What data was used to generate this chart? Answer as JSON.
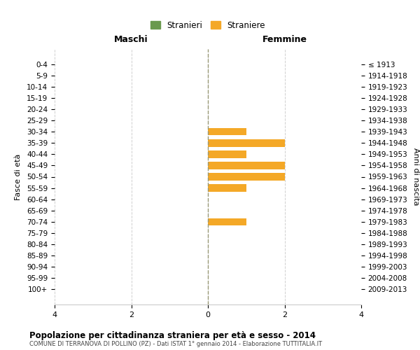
{
  "age_groups": [
    "0-4",
    "5-9",
    "10-14",
    "15-19",
    "20-24",
    "25-29",
    "30-34",
    "35-39",
    "40-44",
    "45-49",
    "50-54",
    "55-59",
    "60-64",
    "65-69",
    "70-74",
    "75-79",
    "80-84",
    "85-89",
    "90-94",
    "95-99",
    "100+"
  ],
  "birth_years": [
    "2009-2013",
    "2004-2008",
    "1999-2003",
    "1994-1998",
    "1989-1993",
    "1984-1988",
    "1979-1983",
    "1974-1978",
    "1969-1973",
    "1964-1968",
    "1959-1963",
    "1954-1958",
    "1949-1953",
    "1944-1948",
    "1939-1943",
    "1934-1938",
    "1929-1933",
    "1924-1928",
    "1919-1923",
    "1914-1918",
    "≤ 1913"
  ],
  "males": [
    0,
    0,
    0,
    0,
    0,
    0,
    0,
    0,
    0,
    0,
    0,
    0,
    0,
    0,
    0,
    0,
    0,
    0,
    0,
    0,
    0
  ],
  "females": [
    0,
    0,
    0,
    0,
    0,
    0,
    1,
    2,
    1,
    2,
    2,
    1,
    0,
    0,
    1,
    0,
    0,
    0,
    0,
    0,
    0
  ],
  "male_color": "#6a994e",
  "female_color": "#f4a827",
  "male_label": "Stranieri",
  "female_label": "Straniere",
  "xlim": 4,
  "title": "Popolazione per cittadinanza straniera per età e sesso - 2014",
  "subtitle": "COMUNE DI TERRANOVA DI POLLINO (PZ) - Dati ISTAT 1° gennaio 2014 - Elaborazione TUTTITALIA.IT",
  "ylabel_left": "Fasce di età",
  "ylabel_right": "Anni di nascita",
  "xlabel_left": "Maschi",
  "xlabel_right": "Femmine",
  "background_color": "#ffffff",
  "grid_color": "#d0d0d0",
  "bar_height": 0.65
}
